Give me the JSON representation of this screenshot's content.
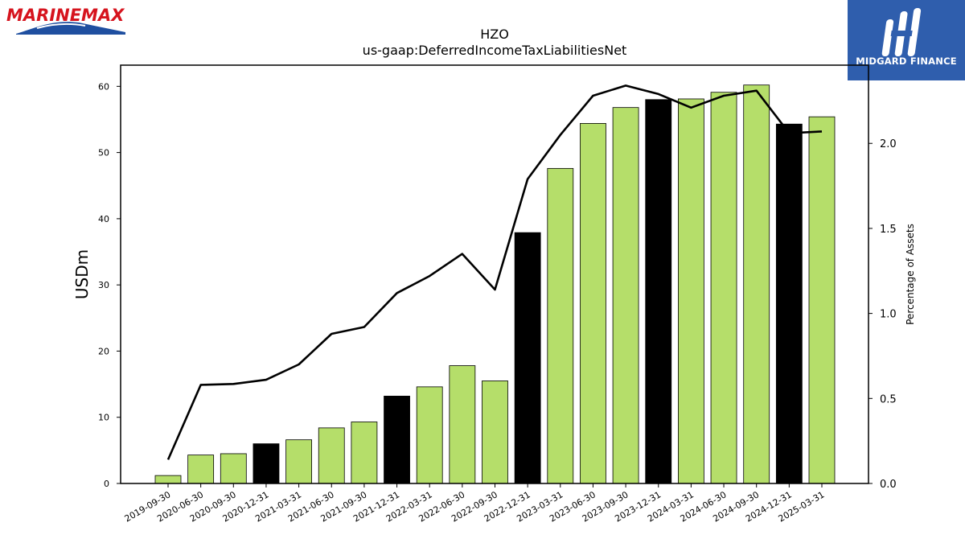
{
  "branding": {
    "left_logo_text": "MARINEMAX",
    "right_logo_text": "MIDGARD FINANCE",
    "right_logo_bg": "#2f5ead",
    "left_logo_red": "#d6141e",
    "left_logo_blue": "#1f4fa0"
  },
  "chart_data": {
    "type": "bar",
    "title": "HZO",
    "subtitle": "us-gaap:DeferredIncomeTaxLiabilitiesNet",
    "ylabel": "USDm",
    "y2label": "Percentage of Assets",
    "ylim": [
      0,
      63.2
    ],
    "y2lim": [
      0,
      2.46
    ],
    "yticks": [
      0,
      10,
      20,
      30,
      40,
      50,
      60
    ],
    "y2ticks": [
      "0.0",
      "0.5",
      "1.0",
      "1.5",
      "2.0"
    ],
    "y2tick_values": [
      0,
      0.5,
      1.0,
      1.5,
      2.0
    ],
    "categories": [
      "2019-09-30",
      "2020-06-30",
      "2020-09-30",
      "2020-12-31",
      "2021-03-31",
      "2021-06-30",
      "2021-09-30",
      "2021-12-31",
      "2022-03-31",
      "2022-06-30",
      "2022-09-30",
      "2022-12-31",
      "2023-03-31",
      "2023-06-30",
      "2023-09-30",
      "2023-12-31",
      "2024-03-31",
      "2024-06-30",
      "2024-09-30",
      "2024-12-31",
      "2025-03-31"
    ],
    "series": [
      {
        "kind": "bar",
        "values": [
          1.2,
          4.3,
          4.5,
          6.0,
          6.6,
          8.4,
          9.3,
          13.2,
          14.6,
          17.8,
          15.5,
          37.9,
          47.6,
          54.4,
          56.8,
          58.0,
          58.1,
          59.1,
          60.2,
          54.3,
          55.4
        ],
        "colors": [
          "#b5de6a",
          "#b5de6a",
          "#b5de6a",
          "#000000",
          "#b5de6a",
          "#b5de6a",
          "#b5de6a",
          "#000000",
          "#b5de6a",
          "#b5de6a",
          "#b5de6a",
          "#000000",
          "#b5de6a",
          "#b5de6a",
          "#b5de6a",
          "#000000",
          "#b5de6a",
          "#b5de6a",
          "#b5de6a",
          "#000000",
          "#b5de6a"
        ]
      },
      {
        "kind": "line",
        "axis": "right",
        "values": [
          0.14,
          0.58,
          0.585,
          0.61,
          0.7,
          0.88,
          0.92,
          1.12,
          1.22,
          1.35,
          1.14,
          1.79,
          2.05,
          2.28,
          2.34,
          2.29,
          2.21,
          2.28,
          2.31,
          2.06,
          2.07
        ]
      }
    ],
    "grid": false,
    "legend": "none"
  }
}
